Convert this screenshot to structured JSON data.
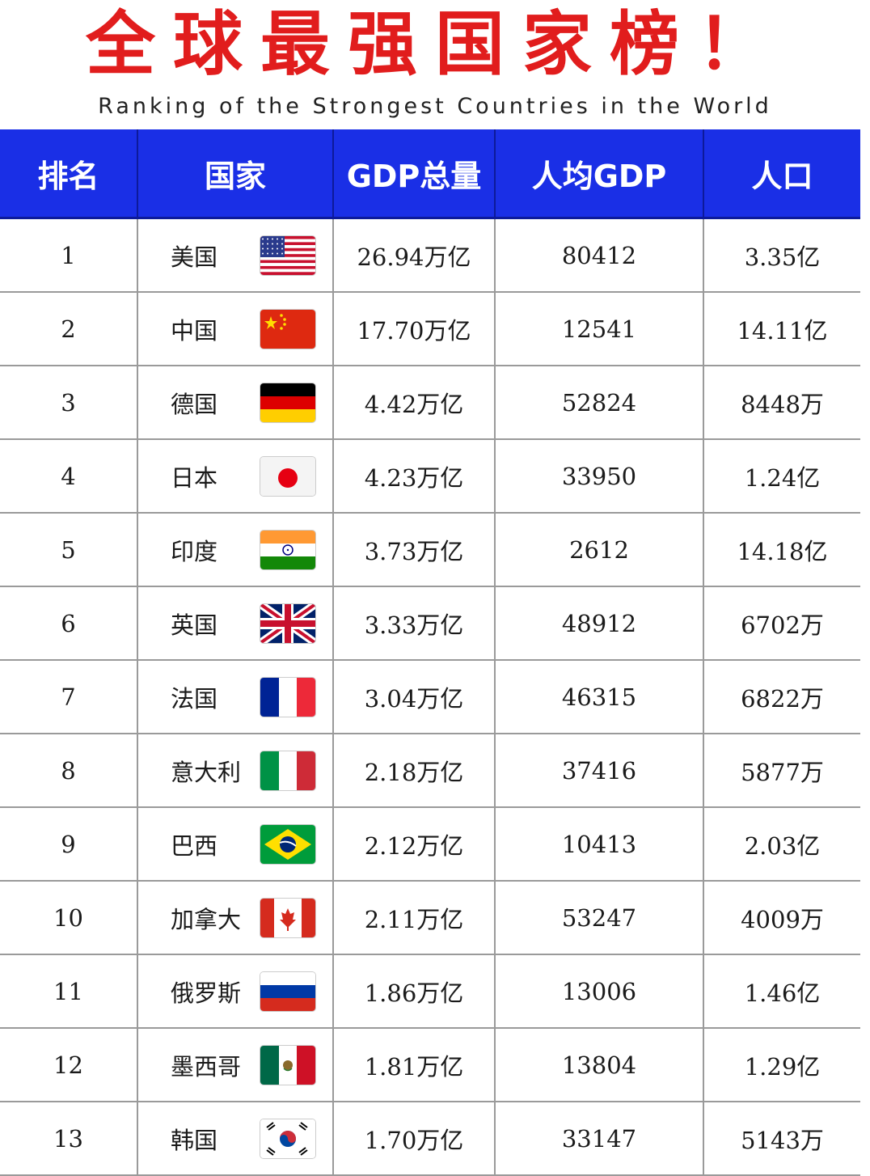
{
  "title": "全球最强国家榜！",
  "subtitle": "Ranking of the Strongest Countries in the World",
  "headers": [
    "排名",
    "国家",
    "GDP总量",
    "人均GDP",
    "人口"
  ],
  "rows": [
    {
      "rank": "1",
      "country": "美国",
      "flag": "usa-flag",
      "gdp": "26.94万亿",
      "per_capita": "80412",
      "population": "3.35亿"
    },
    {
      "rank": "2",
      "country": "中国",
      "flag": "china-flag",
      "gdp": "17.70万亿",
      "per_capita": "12541",
      "population": "14.11亿"
    },
    {
      "rank": "3",
      "country": "德国",
      "flag": "germany-flag",
      "gdp": "4.42万亿",
      "per_capita": "52824",
      "population": "8448万"
    },
    {
      "rank": "4",
      "country": "日本",
      "flag": "japan-flag",
      "gdp": "4.23万亿",
      "per_capita": "33950",
      "population": "1.24亿"
    },
    {
      "rank": "5",
      "country": "印度",
      "flag": "india-flag",
      "gdp": "3.73万亿",
      "per_capita": "2612",
      "population": "14.18亿"
    },
    {
      "rank": "6",
      "country": "英国",
      "flag": "uk-flag",
      "gdp": "3.33万亿",
      "per_capita": "48912",
      "population": "6702万"
    },
    {
      "rank": "7",
      "country": "法国",
      "flag": "france-flag",
      "gdp": "3.04万亿",
      "per_capita": "46315",
      "population": "6822万"
    },
    {
      "rank": "8",
      "country": "意大利",
      "flag": "italy-flag",
      "gdp": "2.18万亿",
      "per_capita": "37416",
      "population": "5877万"
    },
    {
      "rank": "9",
      "country": "巴西",
      "flag": "brazil-flag",
      "gdp": "2.12万亿",
      "per_capita": "10413",
      "population": "2.03亿"
    },
    {
      "rank": "10",
      "country": "加拿大",
      "flag": "canada-flag",
      "gdp": "2.11万亿",
      "per_capita": "53247",
      "population": "4009万"
    },
    {
      "rank": "11",
      "country": "俄罗斯",
      "flag": "russia-flag",
      "gdp": "1.86万亿",
      "per_capita": "13006",
      "population": "1.46亿"
    },
    {
      "rank": "12",
      "country": "墨西哥",
      "flag": "mexico-flag",
      "gdp": "1.81万亿",
      "per_capita": "13804",
      "population": "1.29亿"
    },
    {
      "rank": "13",
      "country": "韩国",
      "flag": "korea-flag",
      "gdp": "1.70万亿",
      "per_capita": "33147",
      "population": "5143万"
    }
  ]
}
